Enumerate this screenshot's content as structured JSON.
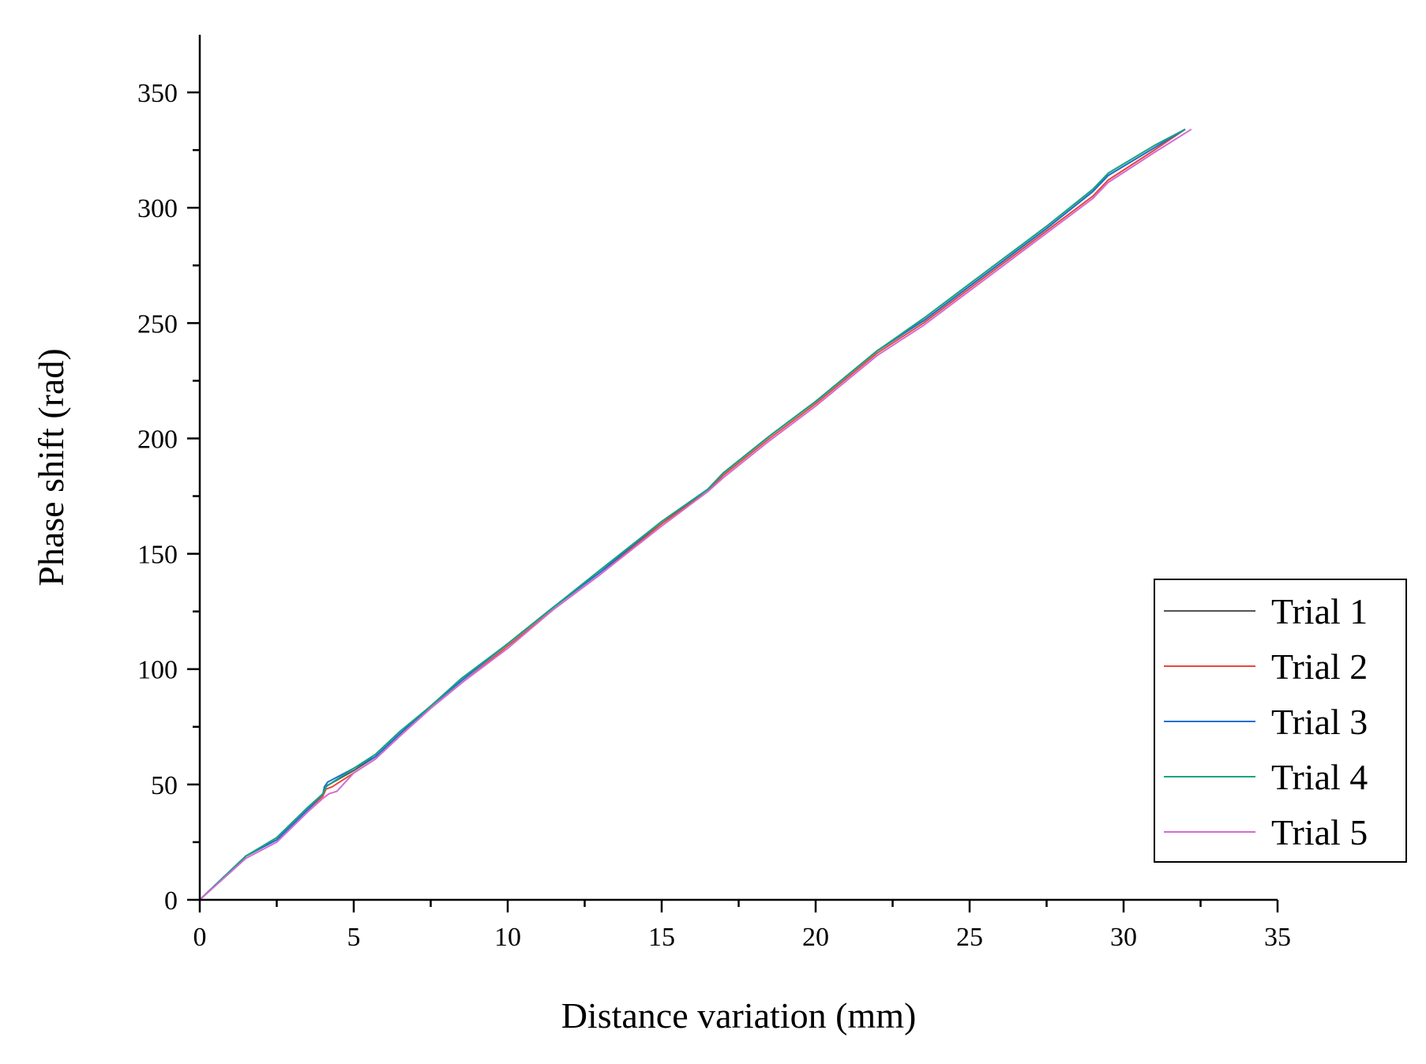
{
  "chart_data": {
    "type": "line",
    "title": "",
    "xlabel": "Distance variation (mm)",
    "ylabel": "Phase shift (rad)",
    "xlim": [
      0,
      35
    ],
    "ylim": [
      0,
      375
    ],
    "xticks": [
      0,
      5,
      10,
      15,
      20,
      25,
      30,
      35
    ],
    "yticks": [
      0,
      50,
      100,
      150,
      200,
      250,
      300,
      350
    ],
    "grid": false,
    "legend_position": "bottom-right",
    "series": [
      {
        "name": "Trial 1",
        "color": "#555555",
        "x": [
          0,
          1.5,
          2.5,
          3.5,
          4.0,
          4.05,
          4.2,
          5.0,
          5.7,
          6.5,
          7.5,
          8.5,
          10,
          11.5,
          13,
          15,
          16.5,
          17,
          18.5,
          20,
          22,
          23.5,
          25,
          26.5,
          27.5,
          29,
          29.5,
          31,
          32
        ],
        "y": [
          0,
          19,
          26,
          39,
          45,
          49,
          50,
          56,
          62,
          72,
          84,
          95,
          111,
          127,
          142,
          163,
          178,
          185,
          201,
          216,
          238,
          251,
          266,
          281,
          291,
          307,
          314,
          326,
          334
        ]
      },
      {
        "name": "Trial 2",
        "color": "#e8483a",
        "x": [
          0,
          1.5,
          2.5,
          3.5,
          4.0,
          4.1,
          4.3,
          5.0,
          5.7,
          6.5,
          7.5,
          8.5,
          10,
          11.5,
          13,
          15,
          16.5,
          17,
          18.5,
          20,
          22,
          23.5,
          25,
          26.5,
          27.5,
          29,
          29.5,
          31,
          32
        ],
        "y": [
          0,
          19,
          26,
          39,
          45,
          48,
          49,
          55,
          61,
          71,
          83,
          94,
          110,
          126,
          141,
          163,
          177,
          184,
          200,
          215,
          237,
          250,
          265,
          280,
          290,
          305,
          312,
          325,
          334
        ]
      },
      {
        "name": "Trial 3",
        "color": "#1f6fd1",
        "x": [
          0,
          1.5,
          2.5,
          3.5,
          4.0,
          4.05,
          4.15,
          5.0,
          5.7,
          6.5,
          7.5,
          8.5,
          10,
          11.5,
          13,
          15,
          16.5,
          17,
          18.5,
          20,
          22,
          23.5,
          25,
          26.5,
          27.5,
          29,
          29.5,
          31,
          32
        ],
        "y": [
          0,
          19,
          26,
          39,
          46,
          49,
          51,
          57,
          62,
          72,
          84,
          95,
          111,
          127,
          142,
          164,
          178,
          185,
          201,
          216,
          238,
          251,
          266,
          281,
          291,
          307,
          314,
          326,
          334
        ]
      },
      {
        "name": "Trial 4",
        "color": "#14a37f",
        "x": [
          0,
          1.5,
          2.5,
          3.5,
          4.0,
          4.1,
          4.2,
          5.0,
          5.7,
          6.5,
          7.5,
          8.5,
          10,
          11.5,
          13,
          15,
          16.5,
          17,
          18.5,
          20,
          22,
          23.5,
          25,
          26.5,
          27.5,
          29,
          29.5,
          31,
          32
        ],
        "y": [
          0,
          19,
          27,
          40,
          46,
          49,
          50,
          57,
          63,
          73,
          84,
          96,
          111,
          127,
          143,
          164,
          178,
          185,
          201,
          216,
          238,
          252,
          267,
          282,
          292,
          308,
          315,
          327,
          334
        ]
      },
      {
        "name": "Trial 5",
        "color": "#d36bd6",
        "x": [
          0,
          1.5,
          2.5,
          3.5,
          4.0,
          4.2,
          4.45,
          5.0,
          5.7,
          6.5,
          7.5,
          8.5,
          10,
          11.5,
          13,
          15,
          16.5,
          17,
          18.5,
          20,
          22,
          23.5,
          25,
          26.5,
          27.5,
          29,
          29.5,
          31,
          32.2
        ],
        "y": [
          0,
          18,
          25,
          38,
          44,
          46,
          47,
          55,
          61,
          71,
          83,
          94,
          109,
          126,
          141,
          162,
          177,
          183,
          199,
          214,
          236,
          249,
          264,
          279,
          289,
          304,
          311,
          324,
          334
        ]
      }
    ]
  }
}
